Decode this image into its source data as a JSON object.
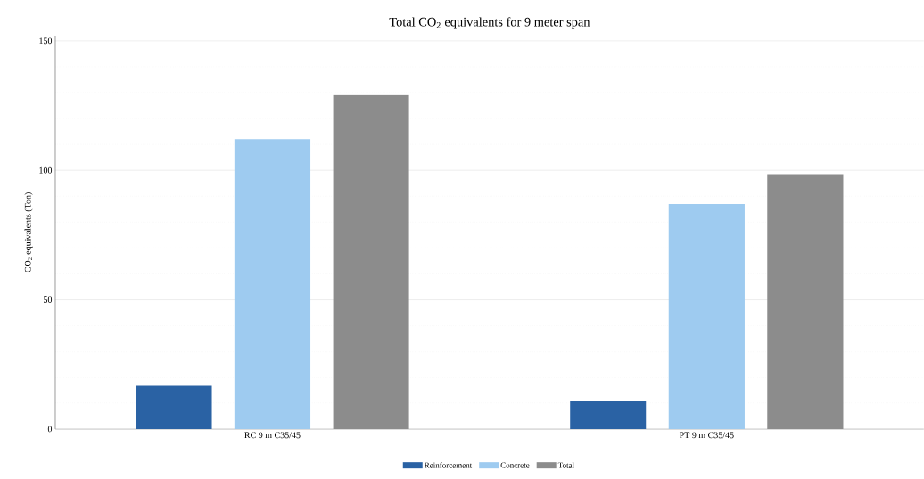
{
  "chart_data": {
    "type": "bar",
    "title": "Total CO$_{2}$ equivalents for 9 meter span",
    "ylabel": "CO$_{2}$ equivalents (Ton)",
    "categories": [
      "RC 9 m C35/45",
      "PT 9 m C35/45"
    ],
    "series": [
      {
        "name": "Reinforcement",
        "color": "#2a62a4",
        "values": [
          17,
          11
        ]
      },
      {
        "name": "Concrete",
        "color": "#9ecbf0",
        "values": [
          112,
          87
        ]
      },
      {
        "name": "Total",
        "color": "#8c8c8c",
        "values": [
          129,
          98.5
        ]
      }
    ],
    "ylim": [
      0,
      152
    ],
    "yticks": [
      0,
      50,
      100,
      150
    ],
    "grid": "y",
    "legend": "bottom"
  }
}
